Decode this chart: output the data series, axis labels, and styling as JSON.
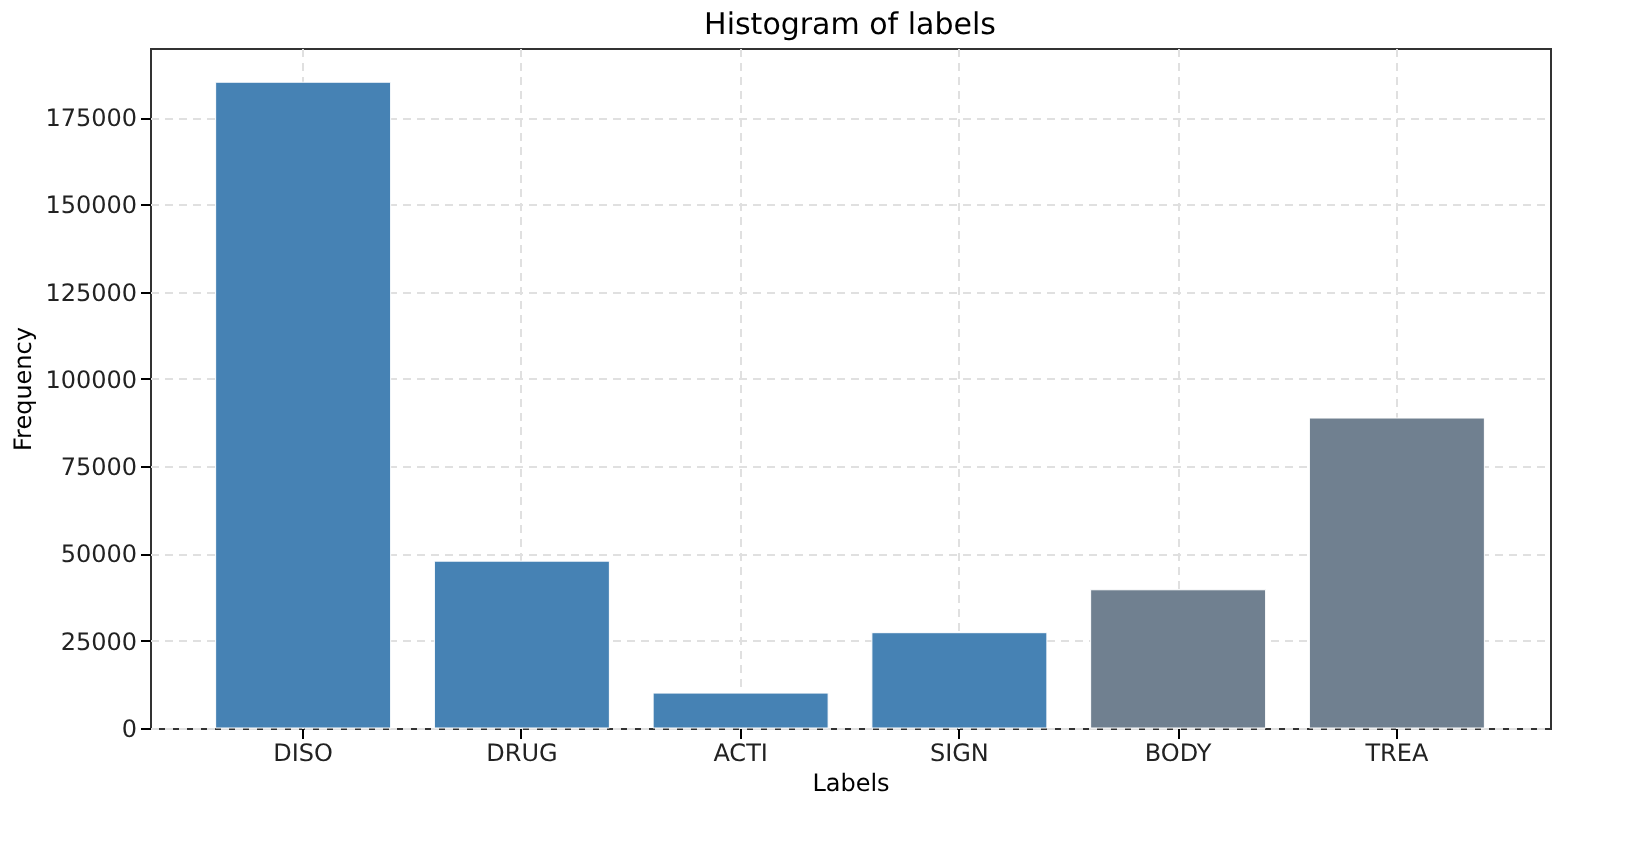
{
  "chart_data": {
    "type": "bar",
    "title": "Histogram of labels",
    "xlabel": "Labels",
    "ylabel": "Frequency",
    "categories": [
      "DISO",
      "DRUG",
      "ACTI",
      "SIGN",
      "BODY",
      "TREA"
    ],
    "values": [
      185000,
      47800,
      10000,
      27300,
      39600,
      88800
    ],
    "colors": [
      "#4682b4",
      "#4682b4",
      "#4682b4",
      "#4682b4",
      "#708090",
      "#708090"
    ],
    "ylim": [
      0,
      194800
    ],
    "yticks": [
      0,
      25000,
      50000,
      75000,
      100000,
      125000,
      150000,
      175000
    ],
    "grid": true
  }
}
